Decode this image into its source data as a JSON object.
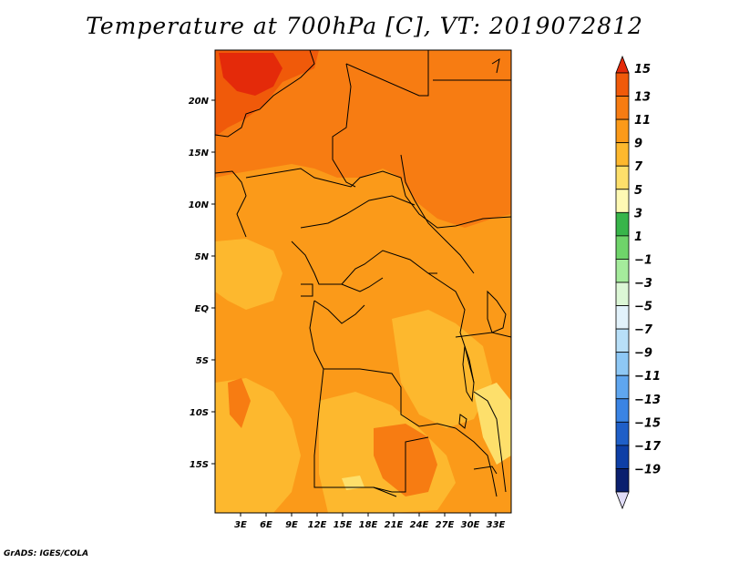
{
  "title": "Temperature at 700hPa [C], VT: 2019072812",
  "credit": "GrADS: IGES/COLA",
  "map": {
    "type": "heatmap",
    "variable": "Temperature at 700hPa",
    "units": "C",
    "valid_time": "2019072812",
    "lon_range": [
      0,
      35
    ],
    "lat_range": [
      -20,
      24
    ],
    "x_ticks": [
      "3E",
      "6E",
      "9E",
      "12E",
      "15E",
      "18E",
      "21E",
      "24E",
      "27E",
      "30E",
      "33E"
    ],
    "y_ticks": [
      "20N",
      "15N",
      "10N",
      "5N",
      "EQ",
      "5S",
      "10S",
      "15S"
    ]
  },
  "colorbar": {
    "labels": [
      "15",
      "13",
      "11",
      "9",
      "7",
      "5",
      "3",
      "1",
      "−1",
      "−3",
      "−5",
      "−7",
      "−9",
      "−11",
      "−13",
      "−15",
      "−17",
      "−19"
    ],
    "colors": [
      "#e42a0a",
      "#f05a0a",
      "#f77c12",
      "#fb9a19",
      "#fdb82e",
      "#fddf6b",
      "#fef9b4",
      "#38b54a",
      "#6fd46a",
      "#a5eb9c",
      "#dcf7d6",
      "#e2f2fb",
      "#b8dff8",
      "#8ec8f5",
      "#5fa6ef",
      "#3a84e4",
      "#1f5fc8",
      "#0e3fa6",
      "#0a1f6e",
      "#e0dcf7"
    ]
  }
}
